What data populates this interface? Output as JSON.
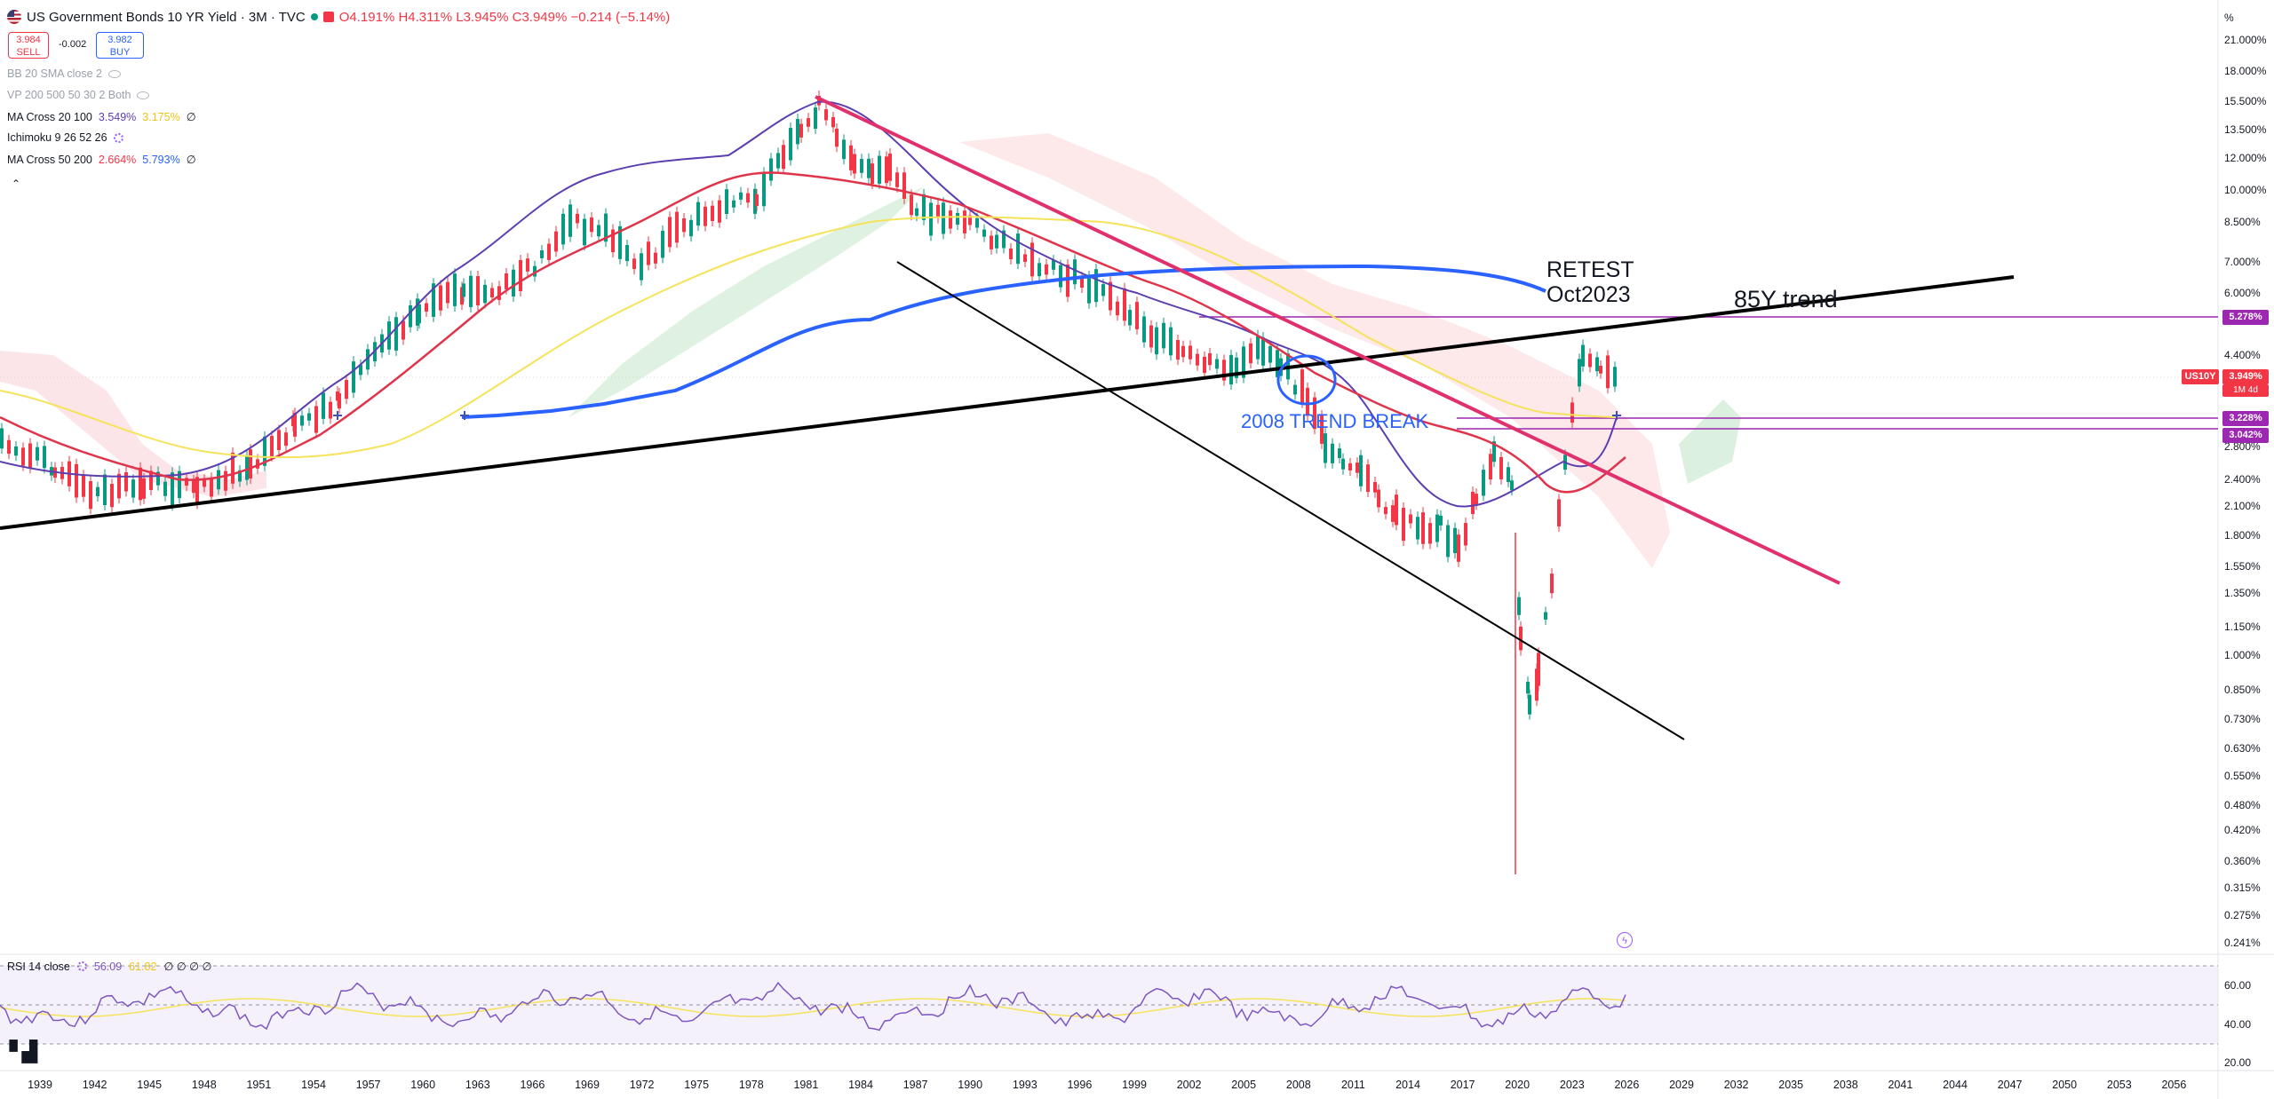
{
  "header": {
    "title": "US Government Bonds 10 YR Yield · 3M · TVC",
    "open": "O4.191%",
    "high": "H4.311%",
    "low": "L3.945%",
    "close": "C3.949%",
    "change": "−0.214 (−5.14%)"
  },
  "trade": {
    "sell_price": "3.984",
    "sell_label": "SELL",
    "spread": "-0.002",
    "buy_price": "3.982",
    "buy_label": "BUY"
  },
  "indicators": [
    {
      "name": "BB 20 SMA close 2",
      "v1": "",
      "v2": ""
    },
    {
      "name": "VP 200 500 50 30 2 Both",
      "v1": "",
      "v2": ""
    },
    {
      "name": "MA Cross 20 100",
      "v1": "3.549%",
      "v2": "3.175%"
    },
    {
      "name": "Ichimoku 9 26 52 26",
      "v1": "",
      "v2": ""
    },
    {
      "name": "MA Cross 50 200",
      "v1": "2.664%",
      "v2": "5.793%"
    }
  ],
  "y_axis": {
    "unit": "%",
    "ticks": [
      "21.000%",
      "18.000%",
      "15.500%",
      "13.500%",
      "12.000%",
      "10.000%",
      "8.500%",
      "7.000%",
      "6.000%",
      "4.400%",
      "2.800%",
      "2.400%",
      "2.100%",
      "1.800%",
      "1.550%",
      "1.350%",
      "1.150%",
      "1.000%",
      "0.850%",
      "0.730%",
      "0.630%",
      "0.550%",
      "0.480%",
      "0.420%",
      "0.360%",
      "0.315%",
      "0.275%",
      "0.241%"
    ]
  },
  "rsi_axis": {
    "ticks": [
      "60.00",
      "40.00",
      "20.00"
    ]
  },
  "x_axis": {
    "ticks": [
      "1939",
      "1942",
      "1945",
      "1948",
      "1951",
      "1954",
      "1957",
      "1960",
      "1963",
      "1966",
      "1969",
      "1972",
      "1975",
      "1978",
      "1981",
      "1984",
      "1987",
      "1990",
      "1993",
      "1996",
      "1999",
      "2002",
      "2005",
      "2008",
      "2011",
      "2014",
      "2017",
      "2020",
      "2023",
      "2026",
      "2029",
      "2032",
      "2035",
      "2038",
      "2041",
      "2044",
      "2047",
      "2050",
      "2053",
      "2056"
    ]
  },
  "price_tags": {
    "level_1": "5.278%",
    "symbol": "US10Y",
    "last": "3.949%",
    "countdown": "1M 4d",
    "level_2": "3.228%",
    "level_3": "3.042%"
  },
  "annotations": {
    "retest_1": "RETEST",
    "retest_2": "Oct2023",
    "trend": "85Y trend",
    "trend_break": "2008 TREND BREAK"
  },
  "rsi": {
    "name": "RSI 14 close",
    "v1": "56.09",
    "v2": "61.82",
    "extra": "∅ ∅ ∅ ∅"
  },
  "icons": [
    "flag-icon",
    "eye-icon",
    "gear-icon",
    "lightning-icon",
    "tradingview-logo-icon"
  ],
  "colors": {
    "bullish": "#089981",
    "bearish": "#f23645",
    "ma_fast": "#5b3fb0",
    "ma_mid": "#e0344b",
    "ma_yellow": "#f5e35b",
    "ma_blue": "#2962ff",
    "downtrend": "#e0316c",
    "purple_levels": "#9c27b0",
    "annotation_blue": "#2962ff"
  }
}
